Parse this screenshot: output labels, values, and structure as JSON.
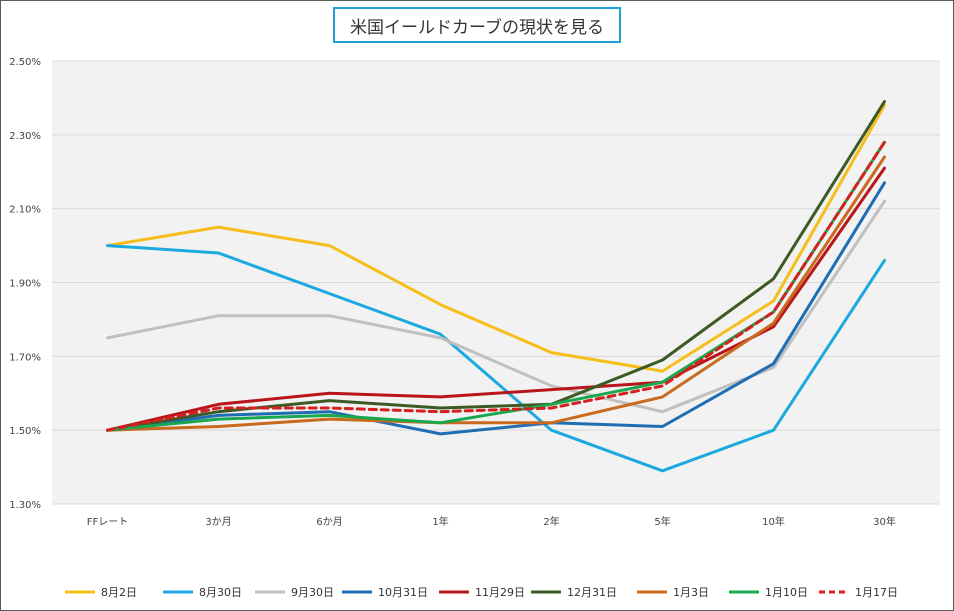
{
  "chart_data": {
    "type": "line",
    "title": "米国イールドカーブの現状を見る",
    "categories": [
      "FFレート",
      "3か月",
      "6か月",
      "1年",
      "2年",
      "5年",
      "10年",
      "30年"
    ],
    "ylim": [
      1.3,
      2.5
    ],
    "yticks": [
      "1.30%",
      "1.50%",
      "1.70%",
      "1.90%",
      "2.10%",
      "2.30%",
      "2.50%"
    ],
    "ytick_values": [
      1.3,
      1.5,
      1.7,
      1.9,
      2.1,
      2.3,
      2.5
    ],
    "grid": true,
    "legend_position": "bottom",
    "series": [
      {
        "name": "8月2日",
        "color": "#f6be1a",
        "dashed": false,
        "values": [
          2.0,
          2.05,
          2.0,
          1.84,
          1.71,
          1.66,
          1.85,
          2.38
        ]
      },
      {
        "name": "8月30日",
        "color": "#1ba9e0",
        "dashed": false,
        "values": [
          2.0,
          1.98,
          1.87,
          1.76,
          1.5,
          1.39,
          1.5,
          1.96
        ]
      },
      {
        "name": "9月30日",
        "color": "#c0c0c0",
        "dashed": false,
        "values": [
          1.75,
          1.81,
          1.81,
          1.75,
          1.62,
          1.55,
          1.67,
          2.12
        ]
      },
      {
        "name": "10月31日",
        "color": "#1f6db3",
        "dashed": false,
        "values": [
          1.5,
          1.54,
          1.55,
          1.49,
          1.52,
          1.51,
          1.68,
          2.17
        ]
      },
      {
        "name": "11月29日",
        "color": "#b8161b",
        "dashed": false,
        "values": [
          1.5,
          1.57,
          1.6,
          1.59,
          1.61,
          1.63,
          1.78,
          2.21
        ]
      },
      {
        "name": "12月31日",
        "color": "#3c5a23",
        "dashed": false,
        "values": [
          1.5,
          1.55,
          1.58,
          1.56,
          1.57,
          1.69,
          1.91,
          2.39
        ]
      },
      {
        "name": "1月3日",
        "color": "#c96a1e",
        "dashed": false,
        "values": [
          1.5,
          1.51,
          1.53,
          1.52,
          1.52,
          1.59,
          1.79,
          2.24
        ]
      },
      {
        "name": "1月10日",
        "color": "#1aa84f",
        "dashed": false,
        "values": [
          1.5,
          1.53,
          1.54,
          1.52,
          1.57,
          1.63,
          1.82,
          2.28
        ]
      },
      {
        "name": "1月17日",
        "color": "#d61f1f",
        "dashed": true,
        "values": [
          1.5,
          1.56,
          1.56,
          1.55,
          1.56,
          1.62,
          1.82,
          2.28
        ]
      }
    ]
  }
}
